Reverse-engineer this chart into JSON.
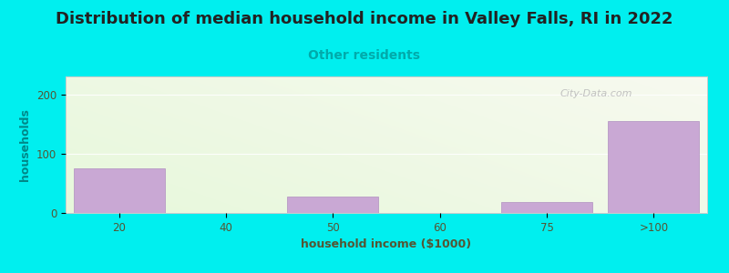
{
  "title": "Distribution of median household income in Valley Falls, RI in 2022",
  "subtitle": "Other residents",
  "xlabel": "household income ($1000)",
  "ylabel": "households",
  "background_color": "#00EFEF",
  "bar_color": "#c9a8d4",
  "bar_edge_color": "#b090c0",
  "categories": [
    "20",
    "40",
    "50",
    "60",
    "75",
    ">100"
  ],
  "values": [
    75,
    0,
    27,
    0,
    18,
    155
  ],
  "bar_positions": [
    1,
    2,
    3,
    4,
    5,
    6
  ],
  "bar_width": 0.85,
  "ylim": [
    0,
    230
  ],
  "yticks": [
    0,
    100,
    200
  ],
  "title_fontsize": 13,
  "subtitle_fontsize": 10,
  "subtitle_color": "#00aaaa",
  "axis_label_fontsize": 9,
  "tick_fontsize": 8.5,
  "ylabel_color": "#008888",
  "xlabel_color": "#555533",
  "tick_color": "#555533",
  "watermark": "City-Data.com",
  "gradient_top_left": "#d8f0d8",
  "gradient_top_right": "#f8f8f0",
  "gradient_bottom_left": "#e8f8e0",
  "gradient_bottom_right": "#fafaf5"
}
